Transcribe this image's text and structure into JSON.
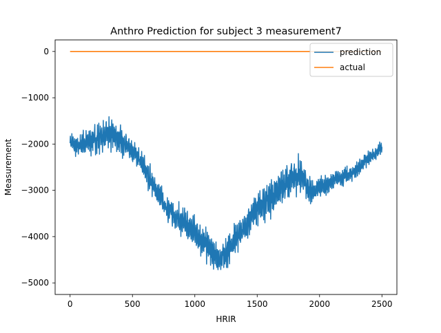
{
  "chart_data": {
    "type": "line",
    "title": "Anthro Prediction for subject 3 measurement7",
    "xlabel": "HRIR",
    "ylabel": "Measurement",
    "xlim": [
      -120,
      2620
    ],
    "ylim": [
      -5250,
      250
    ],
    "x_ticks": [
      0,
      500,
      1000,
      1500,
      2000,
      2500
    ],
    "x_tick_labels": [
      "0",
      "500",
      "1000",
      "1500",
      "2000",
      "2500"
    ],
    "y_ticks": [
      0,
      -1000,
      -2000,
      -3000,
      -4000,
      -5000
    ],
    "y_tick_labels": [
      "0",
      "−1000",
      "−2000",
      "−3000",
      "−4000",
      "−5000"
    ],
    "grid": false,
    "legend_position": "upper right",
    "series": [
      {
        "name": "prediction",
        "color": "#1f77b4",
        "x": [
          0,
          50,
          100,
          150,
          200,
          250,
          300,
          350,
          400,
          450,
          500,
          550,
          600,
          650,
          700,
          750,
          800,
          850,
          900,
          950,
          1000,
          1050,
          1100,
          1150,
          1200,
          1250,
          1300,
          1350,
          1400,
          1450,
          1500,
          1550,
          1600,
          1650,
          1700,
          1750,
          1800,
          1850,
          1900,
          1950,
          2000,
          2050,
          2100,
          2150,
          2200,
          2250,
          2300,
          2350,
          2400,
          2450,
          2500
        ],
        "values": [
          -1950,
          -2050,
          -2000,
          -1950,
          -1900,
          -1850,
          -1800,
          -1820,
          -1900,
          -2000,
          -2150,
          -2350,
          -2550,
          -2800,
          -3050,
          -3300,
          -3450,
          -3550,
          -3700,
          -3800,
          -3900,
          -4050,
          -4200,
          -4400,
          -4500,
          -4350,
          -4150,
          -3950,
          -3800,
          -3600,
          -3400,
          -3250,
          -3150,
          -3050,
          -2900,
          -2800,
          -2700,
          -2650,
          -2950,
          -3050,
          -2950,
          -2900,
          -2800,
          -2750,
          -2700,
          -2650,
          -2550,
          -2400,
          -2300,
          -2200,
          -2050
        ],
        "noise_amplitude": [
          180,
          220,
          240,
          260,
          300,
          320,
          350,
          330,
          300,
          280,
          260,
          260,
          280,
          300,
          300,
          280,
          280,
          300,
          320,
          320,
          320,
          320,
          330,
          350,
          320,
          320,
          330,
          340,
          350,
          360,
          380,
          400,
          400,
          420,
          420,
          420,
          420,
          420,
          300,
          250,
          230,
          220,
          200,
          200,
          190,
          180,
          170,
          160,
          150,
          140,
          120
        ]
      },
      {
        "name": "actual",
        "color": "#ff7f0e",
        "x": [
          0,
          2500
        ],
        "values": [
          0,
          0
        ]
      }
    ]
  }
}
